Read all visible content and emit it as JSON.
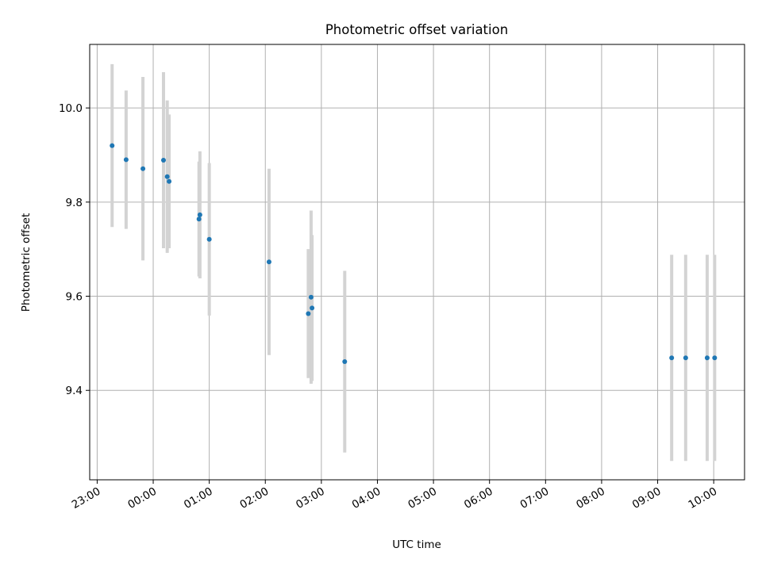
{
  "chart_data": {
    "type": "scatter",
    "title": "Photometric offset variation",
    "xlabel": "UTC time",
    "ylabel": "Photometric offset",
    "x_ticks": [
      "23:00",
      "00:00",
      "01:00",
      "02:00",
      "03:00",
      "04:00",
      "05:00",
      "06:00",
      "07:00",
      "08:00",
      "09:00",
      "10:00"
    ],
    "y_ticks": [
      "9.4",
      "9.6",
      "9.8",
      "10.0"
    ],
    "xlim": [
      "22:52",
      "10:33"
    ],
    "ylim": [
      9.21,
      10.135
    ],
    "grid": true,
    "colors": {
      "point": "#1f77b4",
      "errorbar": "#d3d3d3"
    },
    "points": [
      {
        "x": "23:16",
        "y": 9.92,
        "err": 0.173
      },
      {
        "x": "23:31",
        "y": 9.89,
        "err": 0.147
      },
      {
        "x": "23:49",
        "y": 9.871,
        "err": 0.195
      },
      {
        "x": "00:11",
        "y": 9.889,
        "err": 0.187
      },
      {
        "x": "00:15",
        "y": 9.854,
        "err": 0.162
      },
      {
        "x": "00:17",
        "y": 9.844,
        "err": 0.142
      },
      {
        "x": "00:49",
        "y": 9.764,
        "err": 0.122
      },
      {
        "x": "00:50",
        "y": 9.773,
        "err": 0.135
      },
      {
        "x": "01:00",
        "y": 9.721,
        "err": 0.162
      },
      {
        "x": "02:04",
        "y": 9.673,
        "err": 0.198
      },
      {
        "x": "02:46",
        "y": 9.563,
        "err": 0.137
      },
      {
        "x": "02:49",
        "y": 9.598,
        "err": 0.184
      },
      {
        "x": "02:50",
        "y": 9.575,
        "err": 0.155
      },
      {
        "x": "03:25",
        "y": 9.461,
        "err": 0.193
      },
      {
        "x": "09:15",
        "y": 9.469,
        "err": 0.219
      },
      {
        "x": "09:30",
        "y": 9.469,
        "err": 0.219
      },
      {
        "x": "09:53",
        "y": 9.469,
        "err": 0.219
      },
      {
        "x": "10:01",
        "y": 9.469,
        "err": 0.219
      }
    ]
  }
}
